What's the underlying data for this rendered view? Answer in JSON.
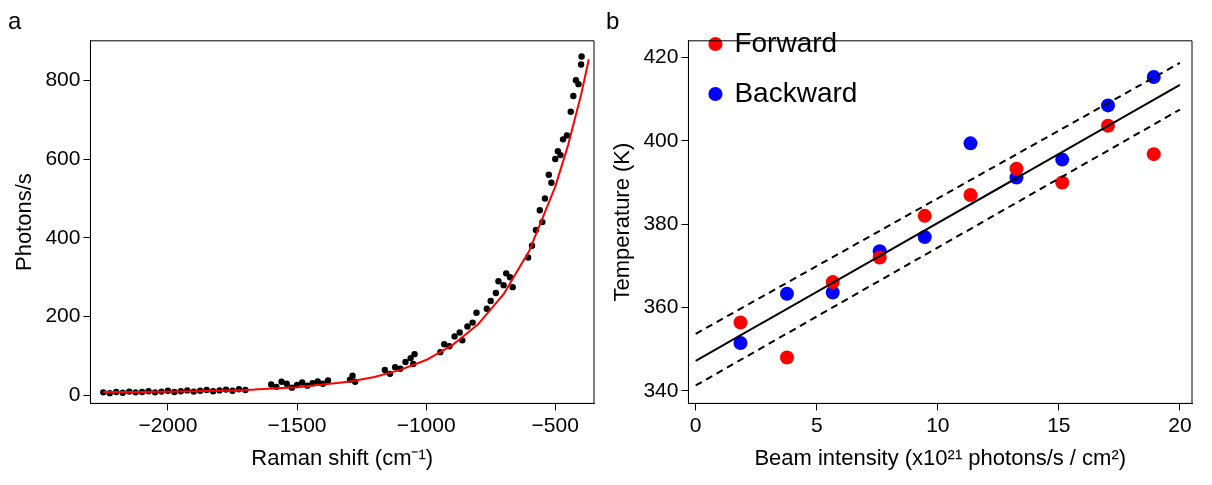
{
  "chart_data": [
    {
      "type": "scatter",
      "title": "a",
      "xlabel": "Raman shift (cm⁻¹)",
      "ylabel": "Photons/s",
      "xlim": [
        -2300,
        -350
      ],
      "xticks": [
        -2000,
        -1500,
        -1000,
        -500
      ],
      "ylim": [
        -20,
        900
      ],
      "yticks": [
        0,
        200,
        400,
        600,
        800
      ],
      "grid": false,
      "series": [
        {
          "type": "scatter",
          "color": "#000000",
          "marker": "circle",
          "x": [
            -2250,
            -2225,
            -2200,
            -2175,
            -2150,
            -2125,
            -2100,
            -2075,
            -2050,
            -2025,
            -2000,
            -1975,
            -1950,
            -1925,
            -1900,
            -1875,
            -1850,
            -1825,
            -1800,
            -1775,
            -1750,
            -1725,
            -1700,
            -1600,
            -1580,
            -1560,
            -1540,
            -1520,
            -1500,
            -1480,
            -1460,
            -1440,
            -1420,
            -1400,
            -1380,
            -1295,
            -1285,
            -1275,
            -1160,
            -1140,
            -1120,
            -1100,
            -1080,
            -1060,
            -1050,
            -1045,
            -945,
            -930,
            -910,
            -890,
            -870,
            -860,
            -840,
            -820,
            -805,
            -765,
            -750,
            -730,
            -720,
            -700,
            -690,
            -675,
            -665,
            -605,
            -590,
            -575,
            -560,
            -550,
            -540,
            -525,
            -515,
            -500,
            -490,
            -480,
            -470,
            -455,
            -440,
            -430,
            -420,
            -410,
            -400,
            -398
          ],
          "values": [
            8,
            6,
            9,
            7,
            10,
            8,
            9,
            11,
            8,
            10,
            12,
            9,
            11,
            13,
            10,
            12,
            14,
            11,
            13,
            15,
            12,
            16,
            14,
            28,
            22,
            35,
            30,
            20,
            27,
            33,
            25,
            31,
            36,
            30,
            38,
            40,
            50,
            35,
            65,
            55,
            72,
            68,
            85,
            95,
            80,
            105,
            110,
            130,
            125,
            150,
            160,
            140,
            175,
            185,
            210,
            220,
            240,
            260,
            290,
            280,
            310,
            300,
            275,
            350,
            380,
            420,
            470,
            440,
            500,
            560,
            540,
            600,
            620,
            610,
            650,
            660,
            720,
            760,
            800,
            790,
            840,
            860
          ]
        },
        {
          "type": "line",
          "color": "#ff0000",
          "marker": "none",
          "x": [
            -2250,
            -2100,
            -1900,
            -1700,
            -1500,
            -1300,
            -1200,
            -1100,
            -1000,
            -900,
            -800,
            -700,
            -600,
            -500,
            -450,
            -400,
            -370
          ],
          "values": [
            9,
            9,
            11,
            14,
            21,
            35,
            47,
            65,
            90,
            127,
            180,
            257,
            368,
            530,
            636,
            763,
            853
          ]
        }
      ]
    },
    {
      "type": "scatter",
      "title": "b",
      "xlabel": "Beam intensity (x10²¹ photons/s / cm²)",
      "ylabel": "Temperature (K)",
      "xlim": [
        -0.3,
        20.5
      ],
      "xticks": [
        0,
        5,
        10,
        15,
        20
      ],
      "ylim": [
        337,
        424
      ],
      "yticks": [
        340,
        360,
        380,
        400,
        420
      ],
      "grid": false,
      "legend": "top left",
      "series": [
        {
          "name": "Forward",
          "type": "scatter",
          "color": "#ff0000",
          "marker": "circle",
          "x": [
            1.85,
            3.77,
            5.66,
            7.6,
            9.46,
            11.35,
            13.25,
            15.14,
            17.03,
            18.92
          ],
          "values": [
            356.4,
            348.0,
            366.1,
            372.0,
            382.0,
            387.0,
            393.3,
            390.0,
            403.6,
            396.8
          ]
        },
        {
          "name": "Backward",
          "type": "scatter",
          "color": "#0000ff",
          "marker": "circle",
          "x": [
            1.85,
            3.77,
            5.66,
            7.6,
            9.46,
            11.35,
            13.25,
            15.14,
            17.03,
            18.92
          ],
          "values": [
            351.5,
            363.3,
            363.6,
            373.5,
            376.9,
            399.4,
            391.2,
            395.5,
            408.5,
            415.3
          ]
        },
        {
          "type": "line",
          "color": "#000000",
          "marker": "none",
          "line_style": "solid",
          "x": [
            0,
            20
          ],
          "values": [
            347.2,
            413.4
          ]
        },
        {
          "type": "line",
          "color": "#000000",
          "marker": "none",
          "line_style": "dashed",
          "x": [
            0,
            20
          ],
          "values": [
            353.7,
            418.7
          ]
        },
        {
          "type": "line",
          "color": "#000000",
          "marker": "none",
          "line_style": "dashed",
          "x": [
            0,
            20
          ],
          "values": [
            341.3,
            407.5
          ]
        }
      ]
    }
  ]
}
